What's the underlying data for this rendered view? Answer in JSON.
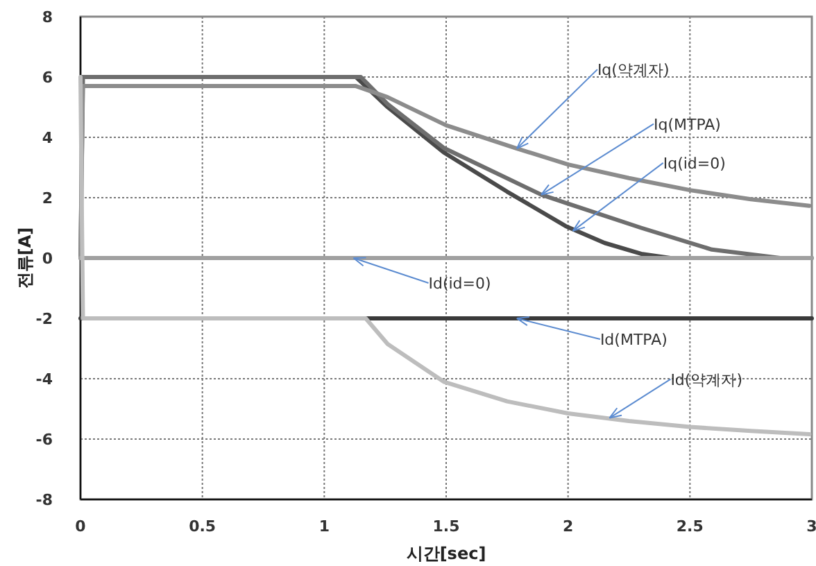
{
  "chart_data": {
    "type": "line",
    "xlabel": "시간[sec]",
    "ylabel": "전류[A]",
    "xlim": [
      0,
      3
    ],
    "xticks": [
      0,
      0.5,
      1,
      1.5,
      2,
      2.5,
      3
    ],
    "ylim": [
      -8,
      8
    ],
    "yticks": [
      -8,
      -6,
      -4,
      -2,
      0,
      2,
      4,
      6,
      8
    ],
    "grid": true,
    "marker": "none",
    "line_style": "solid",
    "series": [
      {
        "color": "#4a4a4a",
        "x": [
          0.01,
          1.13,
          1.26,
          1.49,
          1.75,
          1.99,
          2.15,
          2.3,
          2.42
        ],
        "values": [
          6,
          6,
          5.0,
          3.5,
          2.2,
          1.06,
          0.5,
          0.14,
          0
        ]
      },
      {
        "color": "#6e6e6e",
        "x": [
          0,
          0.01,
          1.15,
          1.26,
          1.49,
          1.89,
          2.0,
          2.3,
          2.59,
          2.87,
          3.0
        ],
        "values": [
          0,
          6,
          6,
          5.1,
          3.65,
          2.1,
          1.8,
          1.0,
          0.28,
          0,
          0
        ]
      },
      {
        "color": "#8c8c8c",
        "x": [
          0,
          0.01,
          1.13,
          1.26,
          1.5,
          1.79,
          2.0,
          2.25,
          2.5,
          2.75,
          2.99
        ],
        "values": [
          0,
          5.7,
          5.7,
          5.33,
          4.4,
          3.63,
          3.1,
          2.65,
          2.25,
          1.95,
          1.73
        ]
      },
      {
        "color": "#a0a0a0",
        "x": [
          0,
          3
        ],
        "values": [
          0,
          0
        ]
      },
      {
        "color": "#3a3a3a",
        "x": [
          0,
          3
        ],
        "values": [
          -2,
          -2
        ]
      },
      {
        "color": "#bdbdbd",
        "x": [
          0,
          0.01,
          1.17,
          1.26,
          1.49,
          1.75,
          2.0,
          2.25,
          2.5,
          2.75,
          2.99
        ],
        "values": [
          6,
          -2,
          -2,
          -2.85,
          -4.1,
          -4.75,
          -5.15,
          -5.4,
          -5.6,
          -5.73,
          -5.84
        ]
      }
    ],
    "annotations": [
      {
        "text": "Iq(약계자)",
        "x": 1.79,
        "y": 3.63
      },
      {
        "text": "Iq(MTPA)",
        "x": 1.89,
        "y": 2.1
      },
      {
        "text": "Iq(id=0)",
        "x": 2.02,
        "y": 0.9
      },
      {
        "text": "Id(id=0)",
        "x": 1.12,
        "y": 0
      },
      {
        "text": "Id(MTPA)",
        "x": 1.79,
        "y": -2
      },
      {
        "text": "Id(약계자)",
        "x": 2.17,
        "y": -5.3
      }
    ]
  }
}
